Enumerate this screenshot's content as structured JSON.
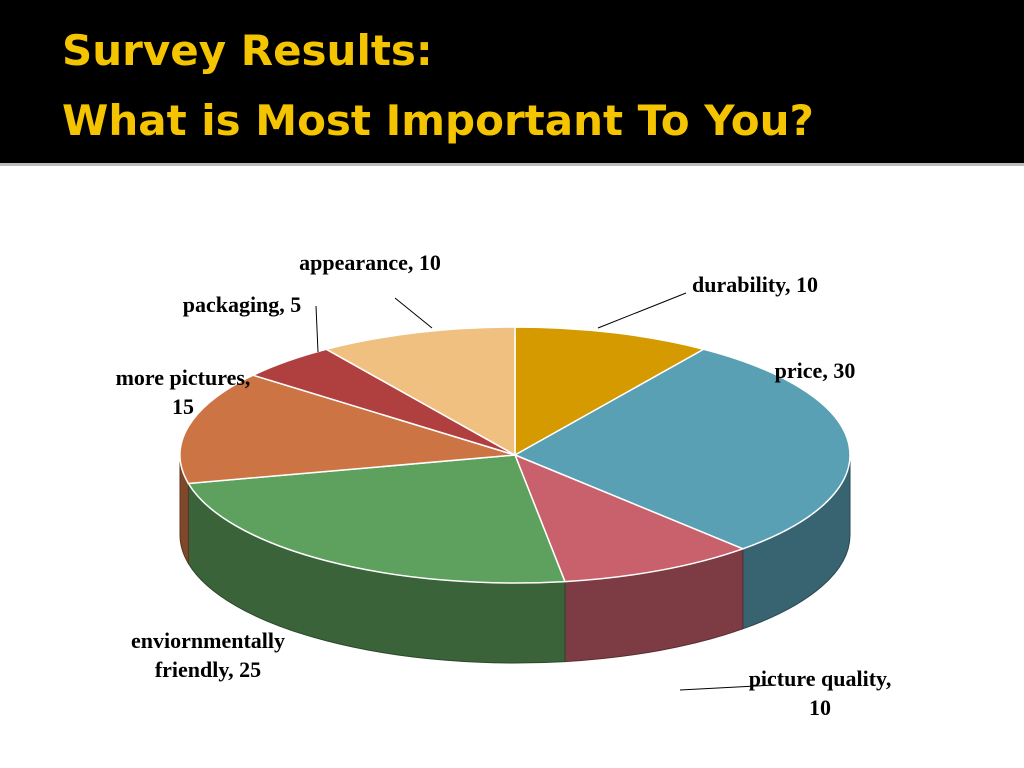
{
  "chart_data": {
    "type": "pie",
    "title": "Survey Results:",
    "subtitle": "What is Most Important To You?",
    "categories": [
      "durability",
      "price",
      "picture quality",
      "enviornmentally friendly",
      "more pictures",
      "packaging",
      "appearance"
    ],
    "values": [
      10,
      30,
      10,
      25,
      15,
      5,
      10
    ],
    "label_separator": ", ",
    "colors": [
      "#d49a00",
      "#5aa0b5",
      "#c9616c",
      "#5ea05e",
      "#cd7444",
      "#b04040",
      "#f0c080"
    ]
  }
}
